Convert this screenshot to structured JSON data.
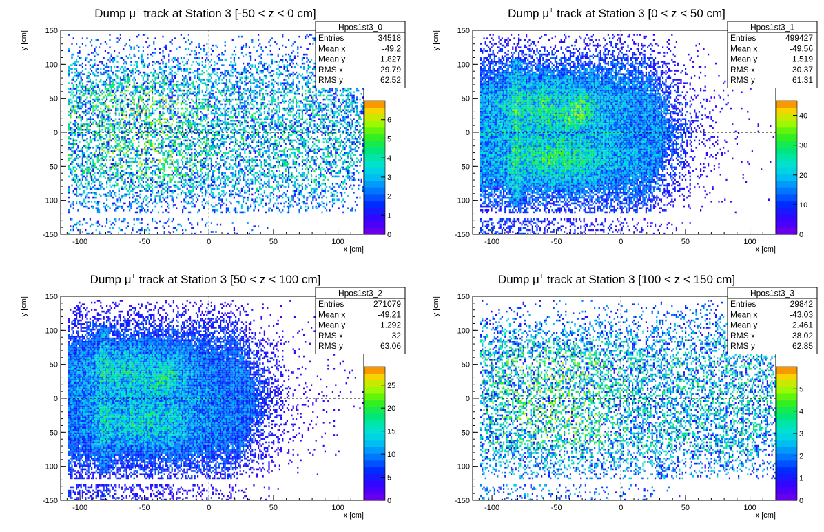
{
  "chart_data": [
    {
      "type": "heatmap",
      "title_prefix": "Dump ",
      "title_mu": "μ",
      "title_sup": "+",
      "title_suffix": " track at Station 3 [-50 < z < 0 cm]",
      "xlabel": "x [cm]",
      "ylabel": "y [cm]",
      "xlim": [
        -115,
        120
      ],
      "ylim": [
        -150,
        150
      ],
      "x_ticks": [
        -100,
        -50,
        0,
        50,
        100
      ],
      "y_ticks": [
        -150,
        -100,
        -50,
        0,
        50,
        100,
        150
      ],
      "zmax": 7,
      "z_ticks": [
        0,
        1,
        2,
        3,
        4,
        5,
        6
      ],
      "density": 0.45,
      "fill_level": 0.38,
      "stats": {
        "name": "Hpos1st3_0",
        "rows": [
          [
            "Entries",
            "34518"
          ],
          [
            "Mean x",
            "-49.2"
          ],
          [
            "Mean y",
            "1.827"
          ],
          [
            "RMS x",
            "29.79"
          ],
          [
            "RMS y",
            "62.52"
          ]
        ]
      },
      "grid": false,
      "legend": "top-right"
    },
    {
      "type": "heatmap",
      "title_prefix": "Dump ",
      "title_mu": "μ",
      "title_sup": "+",
      "title_suffix": " track at Station 3 [0 < z < 50 cm]",
      "xlabel": "x [cm]",
      "ylabel": "y [cm]",
      "xlim": [
        -115,
        120
      ],
      "ylim": [
        -150,
        150
      ],
      "x_ticks": [
        -100,
        -50,
        0,
        50,
        100
      ],
      "y_ticks": [
        -150,
        -100,
        -50,
        0,
        50,
        100,
        150
      ],
      "zmax": 45,
      "z_ticks": [
        0,
        10,
        20,
        30,
        40
      ],
      "density": 1.0,
      "fill_level": 0.3,
      "stats": {
        "name": "Hpos1st3_1",
        "rows": [
          [
            "Entries",
            "499427"
          ],
          [
            "Mean x",
            "-49.56"
          ],
          [
            "Mean y",
            "1.519"
          ],
          [
            "RMS x",
            "30.37"
          ],
          [
            "RMS y",
            "61.31"
          ]
        ]
      },
      "grid": false,
      "legend": "top-right"
    },
    {
      "type": "heatmap",
      "title_prefix": "Dump ",
      "title_mu": "μ",
      "title_sup": "+",
      "title_suffix": " track at Station 3 [50 < z < 100 cm]",
      "xlabel": "x [cm]",
      "ylabel": "y [cm]",
      "xlim": [
        -115,
        120
      ],
      "ylim": [
        -150,
        150
      ],
      "x_ticks": [
        -100,
        -50,
        0,
        50,
        100
      ],
      "y_ticks": [
        -150,
        -100,
        -50,
        0,
        50,
        100,
        150
      ],
      "zmax": 29,
      "z_ticks": [
        0,
        5,
        10,
        15,
        20,
        25
      ],
      "density": 1.0,
      "fill_level": 0.26,
      "stats": {
        "name": "Hpos1st3_2",
        "rows": [
          [
            "Entries",
            "271079"
          ],
          [
            "Mean x",
            "-49.21"
          ],
          [
            "Mean y",
            "1.292"
          ],
          [
            "RMS x",
            "32"
          ],
          [
            "RMS y",
            "63.06"
          ]
        ]
      },
      "grid": false,
      "legend": "top-right"
    },
    {
      "type": "heatmap",
      "title_prefix": "Dump ",
      "title_mu": "μ",
      "title_sup": "+",
      "title_suffix": " track at Station 3 [100 < z < 150 cm]",
      "xlabel": "x [cm]",
      "ylabel": "y [cm]",
      "xlim": [
        -115,
        120
      ],
      "ylim": [
        -150,
        150
      ],
      "x_ticks": [
        -100,
        -50,
        0,
        50,
        100
      ],
      "y_ticks": [
        -150,
        -100,
        -50,
        0,
        50,
        100,
        150
      ],
      "zmax": 6,
      "z_ticks": [
        0,
        1,
        2,
        3,
        4,
        5
      ],
      "density": 0.45,
      "fill_level": 0.4,
      "stats": {
        "name": "Hpos1st3_3",
        "rows": [
          [
            "Entries",
            "29842"
          ],
          [
            "Mean x",
            "-43.03"
          ],
          [
            "Mean y",
            "2.461"
          ],
          [
            "RMS x",
            "38.02"
          ],
          [
            "RMS y",
            "62.85"
          ]
        ]
      },
      "grid": false,
      "legend": "top-right"
    }
  ]
}
